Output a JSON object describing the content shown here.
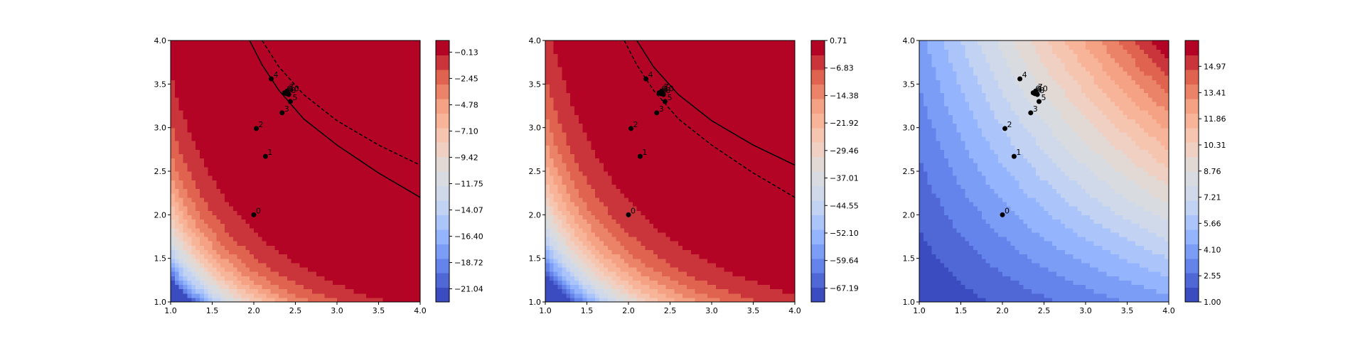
{
  "colors": {
    "cmap": [
      "#3b4cc0",
      "#6788ee",
      "#9abbff",
      "#c9d7f0",
      "#dddddd",
      "#f6cbb7",
      "#f7a889",
      "#e26952",
      "#b40426"
    ],
    "marker": "#000000"
  },
  "chart_data": [
    {
      "type": "contourf",
      "title": "",
      "xlabel": "",
      "ylabel": "",
      "xlim": [
        1.0,
        4.0
      ],
      "ylim": [
        1.0,
        4.0
      ],
      "xticks": [
        "1.0",
        "1.5",
        "2.0",
        "2.5",
        "3.0",
        "3.5",
        "4.0"
      ],
      "yticks": [
        "1.0",
        "1.5",
        "2.0",
        "2.5",
        "3.0",
        "3.5",
        "4.0"
      ],
      "colorbar": {
        "range": [
          -22.2,
          0.9
        ],
        "ticks": [
          "−0.13",
          "−2.45",
          "−4.78",
          "−7.10",
          "−9.42",
          "−11.75",
          "−14.07",
          "−16.40",
          "−18.72",
          "−21.04"
        ]
      },
      "curves": [
        {
          "style": "solid",
          "points": [
            [
              1.95,
              4.0
            ],
            [
              2.1,
              3.72
            ],
            [
              2.3,
              3.43
            ],
            [
              2.6,
              3.1
            ],
            [
              3.0,
              2.8
            ],
            [
              3.5,
              2.48
            ],
            [
              4.0,
              2.2
            ]
          ]
        },
        {
          "style": "dashed",
          "points": [
            [
              2.1,
              4.0
            ],
            [
              2.3,
              3.7
            ],
            [
              2.6,
              3.38
            ],
            [
              3.0,
              3.08
            ],
            [
              3.5,
              2.8
            ],
            [
              4.0,
              2.57
            ]
          ]
        }
      ],
      "points": [
        {
          "label": "0",
          "x": 2.0,
          "y": 2.0
        },
        {
          "label": "1",
          "x": 2.14,
          "y": 2.67
        },
        {
          "label": "2",
          "x": 2.03,
          "y": 2.99
        },
        {
          "label": "3",
          "x": 2.34,
          "y": 3.17
        },
        {
          "label": "4",
          "x": 2.21,
          "y": 3.56
        },
        {
          "label": "5",
          "x": 2.44,
          "y": 3.3
        },
        {
          "label": "6",
          "x": 2.37,
          "y": 3.4
        },
        {
          "label": "7",
          "x": 2.4,
          "y": 3.42
        },
        {
          "label": "8",
          "x": 2.42,
          "y": 3.38
        },
        {
          "label": "9",
          "x": 2.39,
          "y": 3.39
        },
        {
          "label": "10",
          "x": 2.4,
          "y": 3.4
        }
      ]
    },
    {
      "type": "contourf",
      "title": "",
      "xlabel": "",
      "ylabel": "",
      "xlim": [
        1.0,
        4.0
      ],
      "ylim": [
        1.0,
        4.0
      ],
      "xticks": [
        "1.0",
        "1.5",
        "2.0",
        "2.5",
        "3.0",
        "3.5",
        "4.0"
      ],
      "yticks": [
        "1.0",
        "1.5",
        "2.0",
        "2.5",
        "3.0",
        "3.5",
        "4.0"
      ],
      "colorbar": {
        "range": [
          -71.0,
          0.71
        ],
        "ticks": [
          "0.71",
          "−6.83",
          "−14.38",
          "−21.92",
          "−29.46",
          "−37.01",
          "−44.55",
          "−52.10",
          "−59.64",
          "−67.19"
        ]
      },
      "curves": [
        {
          "style": "solid",
          "points": [
            [
              2.1,
              4.0
            ],
            [
              2.3,
              3.7
            ],
            [
              2.6,
              3.38
            ],
            [
              3.0,
              3.08
            ],
            [
              3.5,
              2.8
            ],
            [
              4.0,
              2.57
            ]
          ]
        },
        {
          "style": "dashed",
          "points": [
            [
              1.95,
              4.0
            ],
            [
              2.1,
              3.72
            ],
            [
              2.3,
              3.43
            ],
            [
              2.6,
              3.1
            ],
            [
              3.0,
              2.8
            ],
            [
              3.5,
              2.48
            ],
            [
              4.0,
              2.2
            ]
          ]
        }
      ],
      "points": [
        {
          "label": "0",
          "x": 2.0,
          "y": 2.0
        },
        {
          "label": "1",
          "x": 2.14,
          "y": 2.67
        },
        {
          "label": "2",
          "x": 2.03,
          "y": 2.99
        },
        {
          "label": "3",
          "x": 2.34,
          "y": 3.17
        },
        {
          "label": "4",
          "x": 2.21,
          "y": 3.56
        },
        {
          "label": "5",
          "x": 2.44,
          "y": 3.3
        },
        {
          "label": "6",
          "x": 2.37,
          "y": 3.4
        },
        {
          "label": "7",
          "x": 2.4,
          "y": 3.42
        },
        {
          "label": "8",
          "x": 2.42,
          "y": 3.38
        },
        {
          "label": "9",
          "x": 2.39,
          "y": 3.39
        },
        {
          "label": "10",
          "x": 2.4,
          "y": 3.4
        }
      ]
    },
    {
      "type": "contourf",
      "title": "",
      "xlabel": "",
      "ylabel": "",
      "xlim": [
        1.0,
        4.0
      ],
      "ylim": [
        1.0,
        4.0
      ],
      "xticks": [
        "1.0",
        "1.5",
        "2.0",
        "2.5",
        "3.0",
        "3.5",
        "4.0"
      ],
      "yticks": [
        "1.0",
        "1.5",
        "2.0",
        "2.5",
        "3.0",
        "3.5",
        "4.0"
      ],
      "colorbar": {
        "range": [
          1.0,
          16.5
        ],
        "ticks": [
          "14.97",
          "13.41",
          "11.86",
          "10.31",
          "8.76",
          "7.21",
          "5.66",
          "4.10",
          "2.55",
          "1.00"
        ]
      },
      "curves": [],
      "points": [
        {
          "label": "0",
          "x": 2.0,
          "y": 2.0
        },
        {
          "label": "1",
          "x": 2.14,
          "y": 2.67
        },
        {
          "label": "2",
          "x": 2.03,
          "y": 2.99
        },
        {
          "label": "3",
          "x": 2.34,
          "y": 3.17
        },
        {
          "label": "4",
          "x": 2.21,
          "y": 3.56
        },
        {
          "label": "5",
          "x": 2.44,
          "y": 3.3
        },
        {
          "label": "6",
          "x": 2.37,
          "y": 3.4
        },
        {
          "label": "7",
          "x": 2.4,
          "y": 3.42
        },
        {
          "label": "8",
          "x": 2.42,
          "y": 3.38
        },
        {
          "label": "9",
          "x": 2.39,
          "y": 3.39
        },
        {
          "label": "10",
          "x": 2.4,
          "y": 3.4
        }
      ]
    }
  ]
}
